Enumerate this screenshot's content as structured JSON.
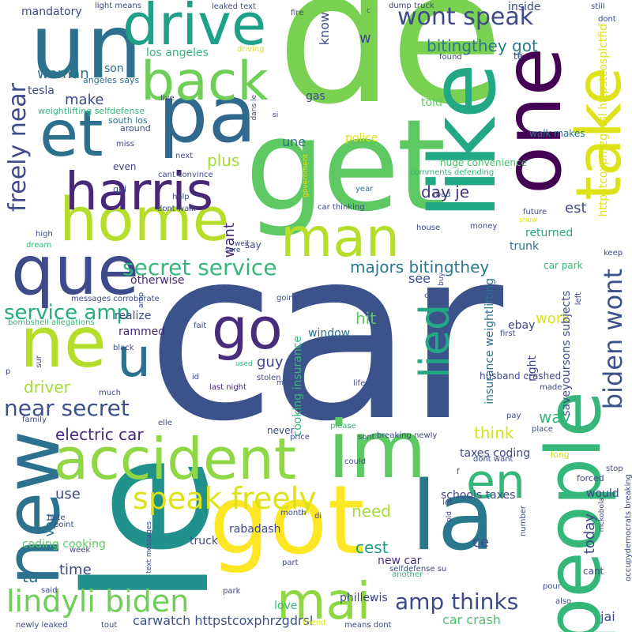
{
  "word_cloud": {
    "words": [
      {
        "text": "car",
        "color": "#3b528b"
      },
      {
        "text": "de",
        "color": "#7ad151"
      },
      {
        "text": "le",
        "color": "#21918c"
      },
      {
        "text": "get",
        "color": "#5ec962"
      },
      {
        "text": "like",
        "color": "#22a884"
      },
      {
        "text": "un",
        "color": "#2c728e"
      },
      {
        "text": "pa",
        "color": "#31688e"
      },
      {
        "text": "one",
        "color": "#440154"
      },
      {
        "text": "drive",
        "color": "#1fa187"
      },
      {
        "text": "take",
        "color": "#dde318"
      },
      {
        "text": "new",
        "color": "#2c728e"
      },
      {
        "text": "accident",
        "color": "#8fd744"
      },
      {
        "text": "im",
        "color": "#5ec962"
      },
      {
        "text": "people",
        "color": "#35b779"
      },
      {
        "text": "got",
        "color": "#fde725"
      },
      {
        "text": "la",
        "color": "#2a788e"
      },
      {
        "text": "home",
        "color": "#b5de2b"
      },
      {
        "text": "man",
        "color": "#b5de2b"
      },
      {
        "text": "harris",
        "color": "#482878"
      },
      {
        "text": "que",
        "color": "#3e4a89"
      },
      {
        "text": "back",
        "color": "#6ece58"
      },
      {
        "text": "et",
        "color": "#2d708e"
      },
      {
        "text": "ne",
        "color": "#b5de2b"
      },
      {
        "text": "mai",
        "color": "#8fd744"
      },
      {
        "text": "go",
        "color": "#472d7b"
      },
      {
        "text": "u",
        "color": "#2c728e"
      },
      {
        "text": "en",
        "color": "#35b779"
      },
      {
        "text": "lied",
        "color": "#22a884"
      },
      {
        "text": "wont speak",
        "color": "#3e4a89"
      },
      {
        "text": "biden wont",
        "color": "#3b528b"
      },
      {
        "text": "speak freely",
        "color": "#dde318"
      },
      {
        "text": "lindyli biden",
        "color": "#6ece58"
      },
      {
        "text": "freely near",
        "color": "#3e4a89"
      },
      {
        "text": "secret service",
        "color": "#35b779"
      },
      {
        "text": "near secret",
        "color": "#3b528b"
      },
      {
        "text": "service amp",
        "color": "#25ab82"
      },
      {
        "text": "amp thinks",
        "color": "#3e4a89"
      },
      {
        "text": "majors bitingthey",
        "color": "#2a788e"
      },
      {
        "text": "bitingthey got",
        "color": "#2a788e"
      },
      {
        "text": "electric car",
        "color": "#482878"
      },
      {
        "text": "woman",
        "color": "#2c728e"
      },
      {
        "text": "make",
        "color": "#3e4a89"
      },
      {
        "text": "driver",
        "color": "#a5db36"
      },
      {
        "text": "plus",
        "color": "#a5db36"
      },
      {
        "text": "want",
        "color": "#482878"
      },
      {
        "text": "day je",
        "color": "#46337e"
      },
      {
        "text": "est",
        "color": "#3e4a89"
      },
      {
        "text": "une",
        "color": "#2c728e"
      },
      {
        "text": "see",
        "color": "#3e4a89"
      },
      {
        "text": "hit",
        "color": "#5ec962"
      },
      {
        "text": "guy",
        "color": "#3e4a89"
      },
      {
        "text": "work",
        "color": "#dde318"
      },
      {
        "text": "way",
        "color": "#35b779"
      },
      {
        "text": "think",
        "color": "#d2e21b"
      },
      {
        "text": "need",
        "color": "#a5db36"
      },
      {
        "text": "cest",
        "color": "#1f9e89"
      },
      {
        "text": "ce",
        "color": "#3e4a89"
      },
      {
        "text": "tu",
        "color": "#2c728e"
      },
      {
        "text": "time",
        "color": "#3e4a89"
      },
      {
        "text": "vou",
        "color": "#2c728e"
      },
      {
        "text": "use",
        "color": "#3e4a89"
      },
      {
        "text": "today",
        "color": "#3e4a89"
      },
      {
        "text": "jai",
        "color": "#3e4a89"
      },
      {
        "text": "returned",
        "color": "#25ab82"
      },
      {
        "text": "trunk",
        "color": "#2c728e"
      },
      {
        "text": "rammed",
        "color": "#482878"
      },
      {
        "text": "realize",
        "color": "#3e4a89"
      },
      {
        "text": "otherwise",
        "color": "#482878"
      },
      {
        "text": "window",
        "color": "#2c728e"
      },
      {
        "text": "cooking insurance",
        "color": "#35b779"
      },
      {
        "text": "insurance weightlifting",
        "color": "#2c728e"
      },
      {
        "text": "saveyoursons subjects",
        "color": "#3e4a89"
      },
      {
        "text": "httpstcoxphrzgdrsl httpstcosplctfid",
        "color": "#dde318"
      },
      {
        "text": "carwatch httpstcoxphrzgdrsl",
        "color": "#3b528b"
      },
      {
        "text": "phillewis",
        "color": "#3e4a89"
      },
      {
        "text": "new car",
        "color": "#472d7b"
      },
      {
        "text": "car crash",
        "color": "#4ac16d"
      },
      {
        "text": "schools taxes",
        "color": "#3e4a89"
      },
      {
        "text": "taxes coding",
        "color": "#3e4a89"
      },
      {
        "text": "coding cooking",
        "color": "#5ec962"
      },
      {
        "text": "rabadash",
        "color": "#3e4a89"
      },
      {
        "text": "truck",
        "color": "#3e4a89"
      },
      {
        "text": "love",
        "color": "#35b779"
      },
      {
        "text": "los angeles",
        "color": "#35b779"
      },
      {
        "text": "police",
        "color": "#dde318"
      },
      {
        "text": "gas",
        "color": "#3e4a89"
      },
      {
        "text": "told",
        "color": "#5ec962"
      },
      {
        "text": "inside",
        "color": "#3e4a89"
      },
      {
        "text": "huge convenience",
        "color": "#4ac16d"
      },
      {
        "text": "walk makes",
        "color": "#2c728e"
      },
      {
        "text": "ebay",
        "color": "#3e4a89"
      },
      {
        "text": "right",
        "color": "#3e4a89"
      },
      {
        "text": "husband crashed",
        "color": "#3e4a89"
      },
      {
        "text": "would",
        "color": "#3e4a89"
      },
      {
        "text": "cant",
        "color": "#3e4a89"
      },
      {
        "text": "forced",
        "color": "#3e4a89"
      },
      {
        "text": "long",
        "color": "#d2e21b"
      },
      {
        "text": "mandatory",
        "color": "#3e4a89"
      },
      {
        "text": "know",
        "color": "#3e4a89"
      },
      {
        "text": "w",
        "color": "#3e4a89"
      },
      {
        "text": "son",
        "color": "#2c728e"
      },
      {
        "text": "tesla",
        "color": "#3e4a89"
      },
      {
        "text": "light means",
        "color": "#3e4a89"
      },
      {
        "text": "leaked text",
        "color": "#3e4a89"
      },
      {
        "text": "dump truck",
        "color": "#3e4a89"
      },
      {
        "text": "still",
        "color": "#3e4a89"
      },
      {
        "text": "dont",
        "color": "#3e4a89"
      },
      {
        "text": "found",
        "color": "#3e4a89"
      },
      {
        "text": "te",
        "color": "#3e4a89"
      },
      {
        "text": "fire",
        "color": "#3e4a89"
      },
      {
        "text": "driving",
        "color": "#dde318"
      },
      {
        "text": "angeles says",
        "color": "#2c728e"
      },
      {
        "text": "weightlifting selfdefense",
        "color": "#35b779"
      },
      {
        "text": "live",
        "color": "#3e4a89"
      },
      {
        "text": "south los",
        "color": "#2c728e"
      },
      {
        "text": "around",
        "color": "#3e4a89"
      },
      {
        "text": "miss",
        "color": "#3e4a89"
      },
      {
        "text": "even",
        "color": "#3e4a89"
      },
      {
        "text": "qui",
        "color": "#3e4a89"
      },
      {
        "text": "next",
        "color": "#3e4a89"
      },
      {
        "text": "cant convince",
        "color": "#3e4a89"
      },
      {
        "text": "government",
        "color": "#dde318"
      },
      {
        "text": "comments defending",
        "color": "#35b779"
      },
      {
        "text": "road",
        "color": "#3e4a89"
      },
      {
        "text": "year",
        "color": "#2c728e"
      },
      {
        "text": "car thinking",
        "color": "#3e4a89"
      },
      {
        "text": "dont walk",
        "color": "#3e4a89"
      },
      {
        "text": "help",
        "color": "#3e4a89"
      },
      {
        "text": "future",
        "color": "#3e4a89"
      },
      {
        "text": "show",
        "color": "#dde318"
      },
      {
        "text": "money",
        "color": "#3e4a89"
      },
      {
        "text": "house",
        "color": "#3e4a89"
      },
      {
        "text": "keep",
        "color": "#3e4a89"
      },
      {
        "text": "say",
        "color": "#3e4a89"
      },
      {
        "text": "well",
        "color": "#3e4a89"
      },
      {
        "text": "high",
        "color": "#3e4a89"
      },
      {
        "text": "dream",
        "color": "#35b779"
      },
      {
        "text": "messages corroborate",
        "color": "#3e4a89"
      },
      {
        "text": "bombshell allegations",
        "color": "#35b779"
      },
      {
        "text": "fait",
        "color": "#3e4a89"
      },
      {
        "text": "going",
        "color": "#3e4a89"
      },
      {
        "text": "ca",
        "color": "#3e4a89"
      },
      {
        "text": "left",
        "color": "#3e4a89"
      },
      {
        "text": "first",
        "color": "#3e4a89"
      },
      {
        "text": "black",
        "color": "#3e4a89"
      },
      {
        "text": "id",
        "color": "#3e4a89"
      },
      {
        "text": "last night",
        "color": "#482878"
      },
      {
        "text": "used",
        "color": "#35b779"
      },
      {
        "text": "moi",
        "color": "#3e4a89"
      },
      {
        "text": "stolen",
        "color": "#3e4a89"
      },
      {
        "text": "sur",
        "color": "#3e4a89"
      },
      {
        "text": "p",
        "color": "#3e4a89"
      },
      {
        "text": "much",
        "color": "#3e4a89"
      },
      {
        "text": "life",
        "color": "#3e4a89"
      },
      {
        "text": "made",
        "color": "#3e4a89"
      },
      {
        "text": "pay",
        "color": "#3e4a89"
      },
      {
        "text": "place",
        "color": "#3e4a89"
      },
      {
        "text": "family",
        "color": "#3e4a89"
      },
      {
        "text": "elle",
        "color": "#3e4a89"
      },
      {
        "text": "please",
        "color": "#35b779"
      },
      {
        "text": "never",
        "color": "#3e4a89"
      },
      {
        "text": "price",
        "color": "#3e4a89"
      },
      {
        "text": "sont",
        "color": "#3e4a89"
      },
      {
        "text": "breaking newly",
        "color": "#3e4a89"
      },
      {
        "text": "dont want",
        "color": "#3e4a89"
      },
      {
        "text": "could",
        "color": "#3e4a89"
      },
      {
        "text": "f",
        "color": "#3e4a89"
      },
      {
        "text": "stop",
        "color": "#3e4a89"
      },
      {
        "text": "mckobola",
        "color": "#3e4a89"
      },
      {
        "text": "let",
        "color": "#3e4a89"
      },
      {
        "text": "old",
        "color": "#3e4a89"
      },
      {
        "text": "number",
        "color": "#3e4a89"
      },
      {
        "text": "hate",
        "color": "#3e4a89"
      },
      {
        "text": "point",
        "color": "#3e4a89"
      },
      {
        "text": "week",
        "color": "#3e4a89"
      },
      {
        "text": "text messages",
        "color": "#3e4a89"
      },
      {
        "text": "month",
        "color": "#3e4a89"
      },
      {
        "text": "di",
        "color": "#3e4a89"
      },
      {
        "text": "occupydemocrats breaking",
        "color": "#3e4a89"
      },
      {
        "text": "pour",
        "color": "#3e4a89"
      },
      {
        "text": "part",
        "color": "#3e4a89"
      },
      {
        "text": "another",
        "color": "#35b779"
      },
      {
        "text": "r",
        "color": "#3e4a89"
      },
      {
        "text": "selfdefense su",
        "color": "#3e4a89"
      },
      {
        "text": "said",
        "color": "#3e4a89"
      },
      {
        "text": "park",
        "color": "#3e4a89"
      },
      {
        "text": "also",
        "color": "#3e4a89"
      },
      {
        "text": "newly leaked",
        "color": "#3e4a89"
      },
      {
        "text": "tout",
        "color": "#3e4a89"
      },
      {
        "text": "friend",
        "color": "#dde318"
      },
      {
        "text": "means dont",
        "color": "#3e4a89"
      },
      {
        "text": "car park",
        "color": "#35b779"
      },
      {
        "text": "dans le",
        "color": "#3e4a89"
      },
      {
        "text": "si",
        "color": "#3e4a89"
      },
      {
        "text": "amp",
        "color": "#3e4a89"
      },
      {
        "text": "c",
        "color": "#3e4a89"
      },
      {
        "text": "sure",
        "color": "#3e4a89"
      },
      {
        "text": "buy",
        "color": "#3e4a89"
      }
    ]
  }
}
